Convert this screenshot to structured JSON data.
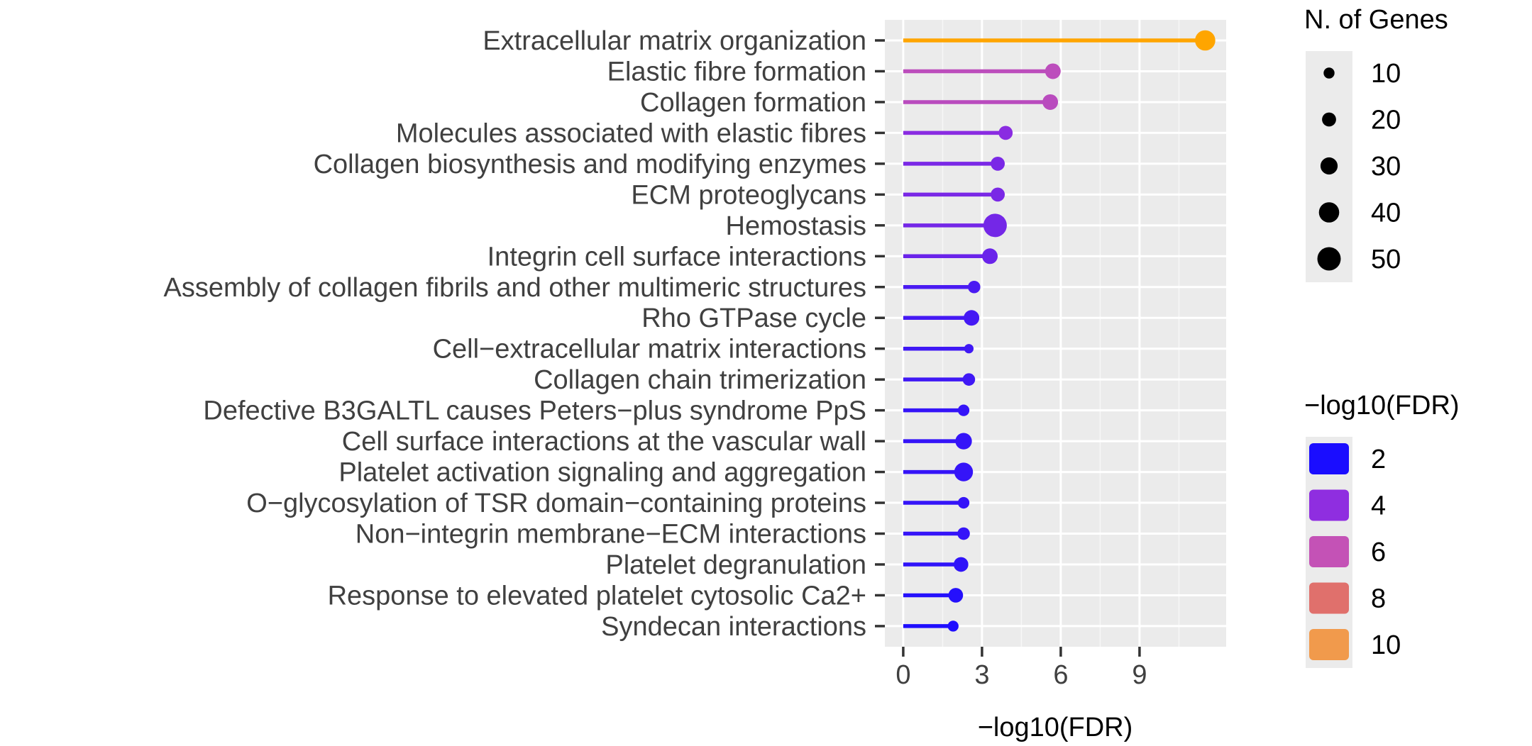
{
  "chart_data": {
    "type": "lollipop",
    "title": "",
    "xlabel": "−log10(FDR)",
    "ylabel": "",
    "xlim": [
      -0.7,
      12.3
    ],
    "x_ticks": [
      0,
      3,
      6,
      9
    ],
    "x_tick_labels": [
      "0",
      "3",
      "6",
      "9"
    ],
    "x_minor_ticks": [
      1.5,
      4.5,
      7.5,
      10.5
    ],
    "color_scale": {
      "min": 1.8,
      "max": 11.5,
      "stops": [
        {
          "value": 1.8,
          "color": "#1a0dff"
        },
        {
          "value": 4,
          "color": "#8f2ee0"
        },
        {
          "value": 6,
          "color": "#c452b6"
        },
        {
          "value": 8,
          "color": "#e0706c"
        },
        {
          "value": 11.5,
          "color": "#ffa500"
        }
      ]
    },
    "categories": [
      "Extracellular matrix organization",
      "Elastic fibre formation",
      "Collagen formation",
      "Molecules associated with elastic fibres",
      "Collagen biosynthesis and modifying enzymes",
      "ECM proteoglycans",
      "Hemostasis",
      "Integrin cell surface interactions",
      "Assembly of collagen fibrils and other multimeric structures",
      "Rho GTPase cycle",
      "Cell−extracellular matrix interactions",
      "Collagen chain trimerization",
      "Defective B3GALTL causes Peters−plus syndrome PpS",
      "Cell surface interactions at the vascular wall",
      "Platelet activation signaling and aggregation",
      "O−glycosylation of TSR domain−containing proteins",
      "Non−integrin membrane−ECM interactions",
      "Platelet degranulation",
      "Response to elevated platelet cytosolic Ca2+",
      "Syndecan interactions"
    ],
    "values": [
      11.5,
      5.7,
      5.6,
      3.9,
      3.6,
      3.6,
      3.5,
      3.3,
      2.7,
      2.6,
      2.5,
      2.5,
      2.3,
      2.3,
      2.3,
      2.3,
      2.3,
      2.2,
      2.0,
      1.9
    ],
    "n_genes": [
      40,
      25,
      25,
      20,
      20,
      20,
      50,
      25,
      15,
      25,
      5,
      15,
      12,
      28,
      35,
      12,
      15,
      22,
      22,
      10
    ],
    "size_legend": {
      "title": "N. of Genes",
      "values": [
        10,
        20,
        30,
        40,
        50
      ],
      "labels": [
        "10",
        "20",
        "30",
        "40",
        "50"
      ]
    },
    "color_legend": {
      "title": "−log10(FDR)",
      "values": [
        2,
        4,
        6,
        8,
        10
      ],
      "labels": [
        "2",
        "4",
        "6",
        "8",
        "10"
      ],
      "colors": [
        "#1a0dff",
        "#8f2ee0",
        "#c452b6",
        "#e0706c",
        "#f19a4c"
      ]
    }
  }
}
